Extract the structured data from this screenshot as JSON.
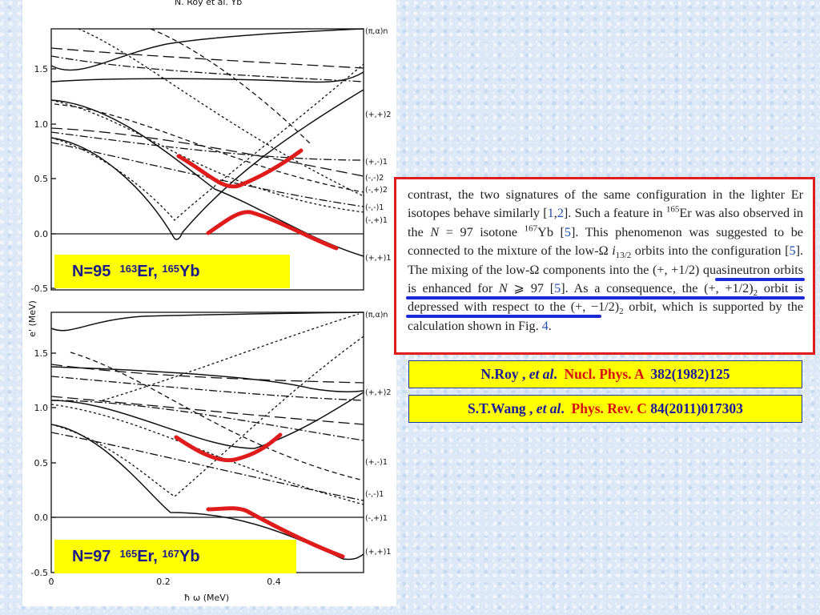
{
  "figure": {
    "top_panel": {
      "label": {
        "n": "N=95",
        "nuc1_mass": "163",
        "nuc1_sym": "Er,",
        "nuc2_mass": "165",
        "nuc2_sym": "Yb"
      },
      "y_ticks": [
        "1.5",
        "1.0",
        "0.5",
        "0.0",
        "-0.5"
      ],
      "right_labels": [
        "(π,α)n",
        "(+,+)2",
        "(+,-)1",
        "(-,-)2",
        "(-,+)2",
        "(-,-)1",
        "(-,+)1",
        "(+,+)1"
      ]
    },
    "bottom_panel": {
      "label": {
        "n": "N=97",
        "nuc1_mass": "165",
        "nuc1_sym": "Er,",
        "nuc2_mass": "167",
        "nuc2_sym": "Yb"
      },
      "y_ticks": [
        "1.5",
        "1.0",
        "0.5",
        "0.0",
        "-0.5"
      ],
      "x_ticks": [
        "0",
        "0.2",
        "0.4"
      ],
      "right_labels": [
        "(π,α)n",
        "(+,+)2",
        "(+,-)1",
        "(-,-)1",
        "(-,+)1",
        "(+,+)1"
      ]
    },
    "y_axis_label": "e' (MeV)",
    "x_axis_label": "ħ ω (MeV)",
    "top_caption_fragment": "N. Roy  et al.        Yb"
  },
  "quote": {
    "part1": "contrast, the two signatures of the same configuration in the lighter Er isotopes behave similarly [",
    "ref_a": "1",
    "sep": ",",
    "ref_b": "2",
    "part2": "]. Such a feature in ",
    "mass_a": "165",
    "part3": "Er was also observed in the ",
    "n_var": "N",
    "part4": " = 97 isotone ",
    "mass_b": "167",
    "part5": "Yb [",
    "ref_c": "5",
    "part6": "]. This phenomenon was suggested to be connected to the mixture of the low-Ω ",
    "i_sym": "i",
    "i_sub": "13/2",
    "part7": " orbits into the configuration [",
    "ref_d": "5",
    "part8": "]. The mixing of the low-Ω components into the (+, +1/2) quasineutron orbits is enhanced for ",
    "n_var2": "N",
    "part9": " ⩾ 97 [",
    "ref_e": "5",
    "part10": "]. As a consequence, the (+, +1/2)",
    "sub_a": "2",
    "part11": " orbit is depressed with respect to the (+, −1/2)",
    "sub_b": "2",
    "part12": " orbit, which is supported by the calculation shown in Fig. ",
    "fig_ref": "4",
    "part13": "."
  },
  "refs": [
    {
      "author": "N.Roy , ",
      "etal": "et al",
      "dot": ".  ",
      "journal": "Nucl. Phys. A  ",
      "cite": "382(1982)125"
    },
    {
      "author": "S.T.Wang , ",
      "etal": "et al",
      "dot": ".  ",
      "journal": "Phys. Rev. C ",
      "cite": "84(2011)017303"
    }
  ],
  "colors": {
    "highlight_red": "#e01b1b",
    "underline_blue": "#1a2ad6",
    "label_yellow": "#ffff00",
    "label_text": "#1a1a8c"
  }
}
